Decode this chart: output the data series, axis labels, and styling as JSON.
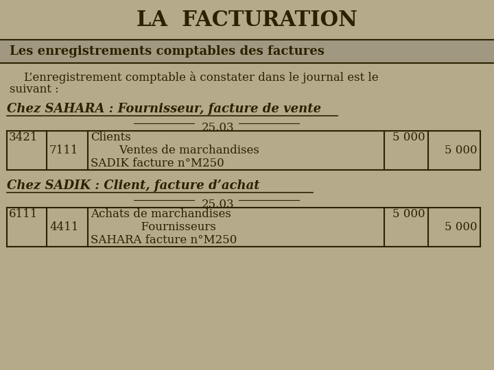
{
  "title": "LA  FACTURATION",
  "subtitle": "Les enregistrements comptables des factures",
  "intro_line1": "    L’enregistrement comptable à constater dans le journal est le",
  "intro_line2": "suivant :",
  "section1_title": "Chez SAHARA : Fournisseur, facture de vente",
  "section1_date": "25.03",
  "section1_rows": [
    {
      "col1": "3421",
      "col2": "",
      "col3": "Clients",
      "col4": "5 000",
      "col5": ""
    },
    {
      "col1": "",
      "col2": "7111",
      "col3": "        Ventes de marchandises",
      "col4": "",
      "col5": "5 000"
    },
    {
      "col1": "",
      "col2": "",
      "col3": "SADIK facture n°M250",
      "col4": "",
      "col5": ""
    }
  ],
  "section2_title": "Chez SADIK : Client, facture d’achat",
  "section2_date": "25.03",
  "section2_rows": [
    {
      "col1": "6111",
      "col2": "",
      "col3": "Achats de marchandises",
      "col4": "5 000",
      "col5": ""
    },
    {
      "col1": "",
      "col2": "4411",
      "col3": "              Fournisseurs",
      "col4": "",
      "col5": "5 000"
    },
    {
      "col1": "",
      "col2": "",
      "col3": "SAHARA facture n°M250",
      "col4": "",
      "col5": ""
    }
  ],
  "bg_color": "#b5aa8a",
  "subtitle_bg": "#a09880",
  "text_color": "#2b2200",
  "border_color": "#2b2200",
  "title_fontsize": 22,
  "subtitle_fontsize": 13,
  "body_fontsize": 12,
  "section_fontsize": 13
}
